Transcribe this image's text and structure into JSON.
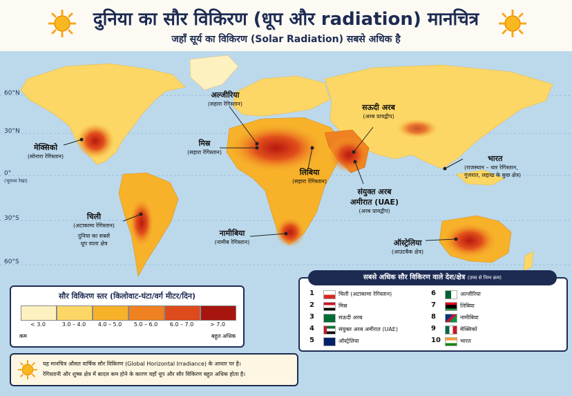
{
  "header": {
    "title": "दुनिया का सौर विकिरण (धूप और radiation) मानचित्र",
    "subtitle": "जहाँ सूर्य का विकिरण (Solar Radiation) सबसे अधिक है"
  },
  "latitudes": [
    "60°N",
    "30°N",
    "0°",
    "(भूमध्य रेखा)",
    "30°S",
    "60°S"
  ],
  "labels": {
    "mexico": {
      "name": "मेक्सिको",
      "sub": "(सोनारा रेगिस्तान)"
    },
    "algeria": {
      "name": "अल्जीरिया",
      "sub": "(सहारा रेगिस्तान)"
    },
    "egypt": {
      "name": "मिस्र",
      "sub": "(सहारा रेगिस्तान)"
    },
    "libya": {
      "name": "लिबिया",
      "sub": "(सहारा रेगिस्तान)"
    },
    "saudi": {
      "name": "सऊदी अरब",
      "sub": "(अरब प्रायद्वीप)"
    },
    "uae": {
      "name": "संयुक्त अरब",
      "name2": "अमीरात (UAE)",
      "sub": "(अरब प्रायद्वीप)"
    },
    "india": {
      "name": "भारत",
      "sub": "(राजस्थान – थार रेगिस्तान,",
      "sub2": "गुजरात, लद्दाख के कुछ क्षेत्र)"
    },
    "chile": {
      "name": "चिली",
      "sub": "(अटाकामा रेगिस्तान)",
      "sub2": "दुनिया का सबसे",
      "sub3": "धूप वाला क्षेत्र"
    },
    "namibia": {
      "name": "नामीबिया",
      "sub": "(नामीब रेगिस्तान)"
    },
    "australia": {
      "name": "ऑस्ट्रेलिया",
      "sub": "(आउटबैक क्षेत्र)"
    }
  },
  "legend": {
    "title": "सौर विकिरण स्तर (किलोवाट-घंटा/वर्ग मीटर/दिन)",
    "levels": [
      {
        "label": "< 3.0",
        "color": "#fdf1c0"
      },
      {
        "label": "3.0 – 4.0",
        "color": "#fcd766"
      },
      {
        "label": "4.0 – 5.0",
        "color": "#f7b22a"
      },
      {
        "label": "5.0 – 6.0",
        "color": "#ef8120"
      },
      {
        "label": "6.0 – 7.0",
        "color": "#df4a1c"
      },
      {
        "label": "> 7.0",
        "color": "#a8150f"
      }
    ],
    "low": "कम",
    "high": "बहुत अधिक"
  },
  "ranking": {
    "title": "सबसे अधिक सौर विकिरण वाले देश/क्षेत्र",
    "title_note": "(उच्च से निम्न क्रम)",
    "items": [
      {
        "num": "1",
        "name": "चिली (अटाकामा रेगिस्तान)",
        "flag": "chile-flag"
      },
      {
        "num": "2",
        "name": "मिस्र",
        "flag": "egypt-flag"
      },
      {
        "num": "3",
        "name": "सऊदी अरब",
        "flag": "saudi-flag"
      },
      {
        "num": "4",
        "name": "संयुक्त अरब अमीरात (UAE)",
        "flag": "uae-flag"
      },
      {
        "num": "5",
        "name": "ऑस्ट्रेलिया",
        "flag": "australia-flag"
      },
      {
        "num": "6",
        "name": "अल्जीरिया",
        "flag": "algeria-flag"
      },
      {
        "num": "7",
        "name": "लिबिया",
        "flag": "libya-flag"
      },
      {
        "num": "8",
        "name": "नामीबिया",
        "flag": "namibia-flag"
      },
      {
        "num": "9",
        "name": "मेक्सिको",
        "flag": "mexico-flag"
      },
      {
        "num": "10",
        "name": "भारत",
        "flag": "india-flag"
      }
    ]
  },
  "note": {
    "line1": "यह मानचित्र औसत वार्षिक सौर विकिरण (Global Horizontal Irradiance) के आधार पर है।",
    "line2": "रेगिस्तानी और शुष्क क्षेत्र में बादल कम होने के कारण यहाँ धूप और सौर विकिरण बहुत अधिक होता है।"
  },
  "colors": {
    "ocean": "#bcd9ec",
    "navy": "#1d2b53",
    "sun": "#f7a81b"
  }
}
